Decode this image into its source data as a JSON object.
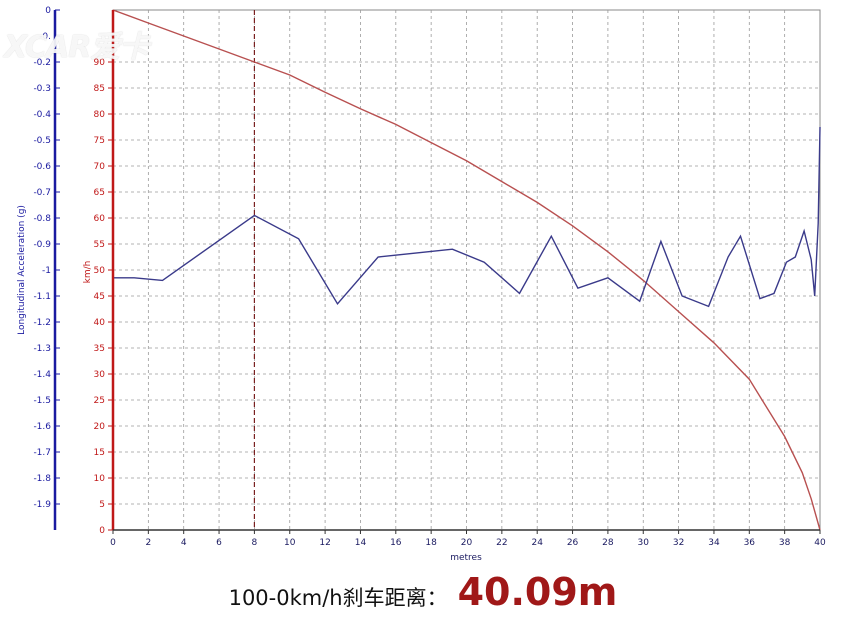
{
  "watermark": {
    "text": "XCAR爱卡"
  },
  "caption": {
    "label": "100-0km/h刹车距离：",
    "value": "40.09m"
  },
  "chart_data": {
    "type": "line",
    "xlabel": "metres",
    "x_ticks": [
      0,
      2,
      4,
      6,
      8,
      10,
      12,
      14,
      16,
      18,
      20,
      22,
      24,
      26,
      28,
      30,
      32,
      34,
      36,
      38,
      40
    ],
    "xlim": [
      0,
      40
    ],
    "grid": true,
    "marker_line_x": 8,
    "left_axis": {
      "label": "Longitudinal Acceleration (g)",
      "ylim": [
        -2,
        0
      ],
      "tick_values": [
        0,
        -0.1,
        -0.2,
        -0.3,
        -0.4,
        -0.5,
        -0.6,
        -0.7,
        -0.8,
        -0.9,
        -1,
        -1.1,
        -1.2,
        -1.3,
        -1.4,
        -1.5,
        -1.6,
        -1.7,
        -1.8,
        -1.9
      ],
      "tick_labels": [
        "0",
        "-0.",
        "-0.2",
        "-0.3",
        "-0.4",
        "-0.5",
        "-0.6",
        "-0.7",
        "-0.8",
        "-0.9",
        "-1",
        "-1.1",
        "-1.2",
        "-1.3",
        "-1.4",
        "-1.5",
        "-1.6",
        "-1.7",
        "-1.8",
        "-1.9"
      ],
      "color": "#1a1aa0"
    },
    "right_axis": {
      "label": "km/h",
      "ylim": [
        0,
        100
      ],
      "tick_values": [
        0,
        5,
        10,
        15,
        20,
        25,
        30,
        35,
        40,
        45,
        50,
        55,
        60,
        65,
        70,
        75,
        80,
        85,
        90
      ],
      "tick_labels": [
        "0",
        "5",
        "10",
        "15",
        "20",
        "25",
        "30",
        "35",
        "40",
        "45",
        "50",
        "55",
        "60",
        "65",
        "70",
        "75",
        "80",
        "85",
        "90"
      ],
      "color": "#c01818"
    },
    "series": [
      {
        "axis": "right",
        "color": "#b85050",
        "x": [
          0,
          2,
          4,
          6,
          8,
          10,
          12,
          14,
          16,
          18,
          20,
          22,
          24,
          26,
          28,
          30,
          32,
          34,
          36,
          38,
          39,
          39.5,
          40
        ],
        "y": [
          100,
          97.5,
          95,
          92.5,
          90,
          87.5,
          84.2,
          81,
          78,
          74.5,
          71,
          67,
          63,
          58.5,
          53.5,
          48,
          42,
          36,
          29,
          18,
          11,
          6,
          0
        ]
      },
      {
        "axis": "left",
        "color": "#3a3a8a",
        "x": [
          0,
          1.2,
          2.8,
          8,
          10.5,
          12.7,
          15,
          19.2,
          21,
          23,
          24.8,
          26.3,
          28,
          29.8,
          31,
          32.2,
          33.7,
          34.8,
          35.5,
          36.6,
          37.4,
          38.1,
          38.6,
          39.1,
          39.5,
          39.7,
          39.9,
          40
        ],
        "y": [
          -1.03,
          -1.03,
          -1.04,
          -0.79,
          -0.88,
          -1.13,
          -0.95,
          -0.92,
          -0.97,
          -1.09,
          -0.87,
          -1.07,
          -1.03,
          -1.12,
          -0.89,
          -1.1,
          -1.14,
          -0.95,
          -0.87,
          -1.11,
          -1.09,
          -0.97,
          -0.95,
          -0.85,
          -0.96,
          -1.1,
          -0.82,
          -0.45
        ]
      }
    ]
  }
}
